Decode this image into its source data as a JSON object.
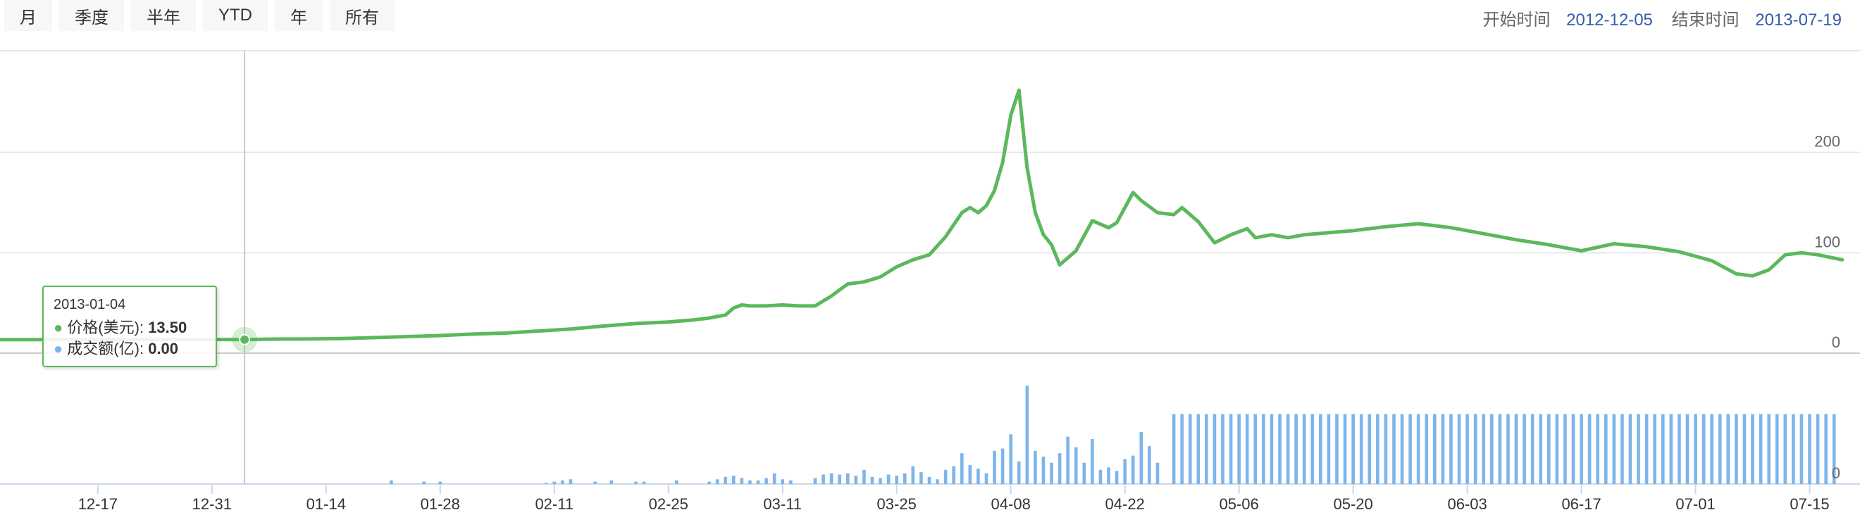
{
  "range_buttons": [
    "月",
    "季度",
    "半年",
    "YTD",
    "年",
    "所有"
  ],
  "date_range": {
    "start_label": "开始时间",
    "start_value": "2012-12-05",
    "end_label": "结束时间",
    "end_value": "2013-07-19"
  },
  "tooltip": {
    "date": "2013-01-04",
    "price_label": "价格(美元):",
    "price_value": "13.50",
    "volume_label": "成交额(亿):",
    "volume_value": "0.00"
  },
  "colors": {
    "price": "#5cb85c",
    "volume": "#7cb5ec",
    "grid": "#e6e6e6",
    "axis_label": "#666666"
  },
  "chart_data": [
    {
      "type": "line",
      "series": [
        {
          "name": "价格(美元)",
          "points": [
            [
              "2012-12-05",
              13.5
            ],
            [
              "2012-12-10",
              13.5
            ],
            [
              "2012-12-15",
              13.6
            ],
            [
              "2012-12-20",
              13.6
            ],
            [
              "2012-12-25",
              13.7
            ],
            [
              "2012-12-30",
              13.7
            ],
            [
              "2013-01-04",
              13.5
            ],
            [
              "2013-01-08",
              14.0
            ],
            [
              "2013-01-12",
              14.1
            ],
            [
              "2013-01-16",
              14.5
            ],
            [
              "2013-01-20",
              15.5
            ],
            [
              "2013-01-24",
              16.5
            ],
            [
              "2013-01-28",
              17.5
            ],
            [
              "2013-02-01",
              19.0
            ],
            [
              "2013-02-05",
              20.0
            ],
            [
              "2013-02-09",
              22.0
            ],
            [
              "2013-02-13",
              24.0
            ],
            [
              "2013-02-17",
              27.0
            ],
            [
              "2013-02-21",
              29.5
            ],
            [
              "2013-02-25",
              31.0
            ],
            [
              "2013-02-28",
              33.0
            ],
            [
              "2013-03-02",
              35.0
            ],
            [
              "2013-03-04",
              38.0
            ],
            [
              "2013-03-05",
              45.0
            ],
            [
              "2013-03-06",
              48.0
            ],
            [
              "2013-03-07",
              47.0
            ],
            [
              "2013-03-09",
              47.0
            ],
            [
              "2013-03-11",
              48.0
            ],
            [
              "2013-03-13",
              47.0
            ],
            [
              "2013-03-15",
              47.0
            ],
            [
              "2013-03-17",
              57.0
            ],
            [
              "2013-03-19",
              69.0
            ],
            [
              "2013-03-21",
              71.0
            ],
            [
              "2013-03-23",
              76.0
            ],
            [
              "2013-03-25",
              86.0
            ],
            [
              "2013-03-27",
              93.0
            ],
            [
              "2013-03-29",
              98.0
            ],
            [
              "2013-03-31",
              116.0
            ],
            [
              "2013-04-02",
              140.0
            ],
            [
              "2013-04-03",
              145.0
            ],
            [
              "2013-04-04",
              140.0
            ],
            [
              "2013-04-05",
              147.0
            ],
            [
              "2013-04-06",
              162.0
            ],
            [
              "2013-04-07",
              190.0
            ],
            [
              "2013-04-08",
              237.0
            ],
            [
              "2013-04-09",
              262.0
            ],
            [
              "2013-04-10",
              185.0
            ],
            [
              "2013-04-11",
              140.0
            ],
            [
              "2013-04-12",
              118.0
            ],
            [
              "2013-04-13",
              108.0
            ],
            [
              "2013-04-14",
              88.0
            ],
            [
              "2013-04-16",
              102.0
            ],
            [
              "2013-04-18",
              132.0
            ],
            [
              "2013-04-20",
              125.0
            ],
            [
              "2013-04-21",
              130.0
            ],
            [
              "2013-04-23",
              160.0
            ],
            [
              "2013-04-24",
              152.0
            ],
            [
              "2013-04-26",
              140.0
            ],
            [
              "2013-04-28",
              138.0
            ],
            [
              "2013-04-29",
              145.0
            ],
            [
              "2013-05-01",
              131.0
            ],
            [
              "2013-05-03",
              110.0
            ],
            [
              "2013-05-05",
              118.0
            ],
            [
              "2013-05-07",
              124.0
            ],
            [
              "2013-05-08",
              115.0
            ],
            [
              "2013-05-10",
              118.0
            ],
            [
              "2013-05-12",
              115.0
            ],
            [
              "2013-05-14",
              118.0
            ],
            [
              "2013-05-17",
              120.0
            ],
            [
              "2013-05-20",
              122.0
            ],
            [
              "2013-05-24",
              126.0
            ],
            [
              "2013-05-28",
              129.0
            ],
            [
              "2013-06-01",
              125.0
            ],
            [
              "2013-06-05",
              119.0
            ],
            [
              "2013-06-09",
              113.0
            ],
            [
              "2013-06-13",
              108.0
            ],
            [
              "2013-06-17",
              102.0
            ],
            [
              "2013-06-21",
              109.0
            ],
            [
              "2013-06-25",
              106.0
            ],
            [
              "2013-06-29",
              101.0
            ],
            [
              "2013-07-03",
              92.0
            ],
            [
              "2013-07-06",
              79.0
            ],
            [
              "2013-07-08",
              77.0
            ],
            [
              "2013-07-10",
              83.0
            ],
            [
              "2013-07-12",
              98.0
            ],
            [
              "2013-07-14",
              100.0
            ],
            [
              "2013-07-16",
              98.0
            ],
            [
              "2013-07-19",
              93.0
            ]
          ]
        }
      ],
      "ylim": [
        0,
        300
      ],
      "y_ticks": [
        0,
        100,
        200
      ],
      "y_axis_position": "right",
      "grid": true
    },
    {
      "type": "bar",
      "series": [
        {
          "name": "成交额(亿)",
          "points": [
            [
              "2013-01-04",
              0
            ],
            [
              "2013-01-22",
              0.3
            ],
            [
              "2013-01-26",
              0.2
            ],
            [
              "2013-01-28",
              0.2
            ],
            [
              "2013-02-10",
              0.1
            ],
            [
              "2013-02-11",
              0.2
            ],
            [
              "2013-02-12",
              0.3
            ],
            [
              "2013-02-13",
              0.4
            ],
            [
              "2013-02-16",
              0.2
            ],
            [
              "2013-02-18",
              0.3
            ],
            [
              "2013-02-21",
              0.2
            ],
            [
              "2013-02-22",
              0.2
            ],
            [
              "2013-02-26",
              0.3
            ],
            [
              "2013-03-02",
              0.2
            ],
            [
              "2013-03-03",
              0.4
            ],
            [
              "2013-03-04",
              0.6
            ],
            [
              "2013-03-05",
              0.7
            ],
            [
              "2013-03-06",
              0.5
            ],
            [
              "2013-03-07",
              0.3
            ],
            [
              "2013-03-08",
              0.3
            ],
            [
              "2013-03-09",
              0.5
            ],
            [
              "2013-03-10",
              0.9
            ],
            [
              "2013-03-11",
              0.4
            ],
            [
              "2013-03-12",
              0.3
            ],
            [
              "2013-03-15",
              0.5
            ],
            [
              "2013-03-16",
              0.8
            ],
            [
              "2013-03-17",
              0.9
            ],
            [
              "2013-03-18",
              0.8
            ],
            [
              "2013-03-19",
              0.9
            ],
            [
              "2013-03-20",
              0.7
            ],
            [
              "2013-03-21",
              1.2
            ],
            [
              "2013-03-22",
              0.6
            ],
            [
              "2013-03-23",
              0.5
            ],
            [
              "2013-03-24",
              0.8
            ],
            [
              "2013-03-25",
              0.7
            ],
            [
              "2013-03-26",
              0.9
            ],
            [
              "2013-03-27",
              1.5
            ],
            [
              "2013-03-28",
              1.0
            ],
            [
              "2013-03-29",
              0.6
            ],
            [
              "2013-03-30",
              0.4
            ],
            [
              "2013-03-31",
              1.2
            ],
            [
              "2013-04-01",
              1.5
            ],
            [
              "2013-04-02",
              2.6
            ],
            [
              "2013-04-03",
              1.6
            ],
            [
              "2013-04-04",
              1.3
            ],
            [
              "2013-04-05",
              0.9
            ],
            [
              "2013-04-06",
              2.8
            ],
            [
              "2013-04-07",
              3.0
            ],
            [
              "2013-04-08",
              4.2
            ],
            [
              "2013-04-09",
              1.9
            ],
            [
              "2013-04-10",
              8.3
            ],
            [
              "2013-04-11",
              2.8
            ],
            [
              "2013-04-12",
              2.3
            ],
            [
              "2013-04-13",
              1.8
            ],
            [
              "2013-04-14",
              2.6
            ],
            [
              "2013-04-15",
              4.0
            ],
            [
              "2013-04-16",
              3.1
            ],
            [
              "2013-04-17",
              1.8
            ],
            [
              "2013-04-18",
              3.8
            ],
            [
              "2013-04-19",
              1.2
            ],
            [
              "2013-04-20",
              1.4
            ],
            [
              "2013-04-21",
              1.1
            ],
            [
              "2013-04-22",
              2.1
            ],
            [
              "2013-04-23",
              2.4
            ],
            [
              "2013-04-24",
              4.4
            ],
            [
              "2013-04-25",
              3.2
            ],
            [
              "2013-04-26",
              1.8
            ]
          ],
          "constant_from": "2013-04-28",
          "constant_to": "2013-07-18",
          "constant_value": 5.9
        }
      ],
      "ylim": [
        0,
        8.5
      ],
      "y_ticks": [
        0
      ],
      "y_axis_position": "right"
    }
  ],
  "x_axis": {
    "ticks": [
      [
        "2012-12-17",
        "12-17"
      ],
      [
        "2012-12-31",
        "12-31"
      ],
      [
        "2013-01-14",
        "01-14"
      ],
      [
        "2013-01-28",
        "01-28"
      ],
      [
        "2013-02-11",
        "02-11"
      ],
      [
        "2013-02-25",
        "02-25"
      ],
      [
        "2013-03-11",
        "03-11"
      ],
      [
        "2013-03-25",
        "03-25"
      ],
      [
        "2013-04-08",
        "04-08"
      ],
      [
        "2013-04-22",
        "04-22"
      ],
      [
        "2013-05-06",
        "05-06"
      ],
      [
        "2013-05-20",
        "05-20"
      ],
      [
        "2013-06-03",
        "06-03"
      ],
      [
        "2013-06-17",
        "06-17"
      ],
      [
        "2013-07-01",
        "07-01"
      ],
      [
        "2013-07-15",
        "07-15"
      ]
    ],
    "range": [
      "2012-12-05",
      "2013-07-19"
    ]
  },
  "crosshair_date": "2013-01-04"
}
